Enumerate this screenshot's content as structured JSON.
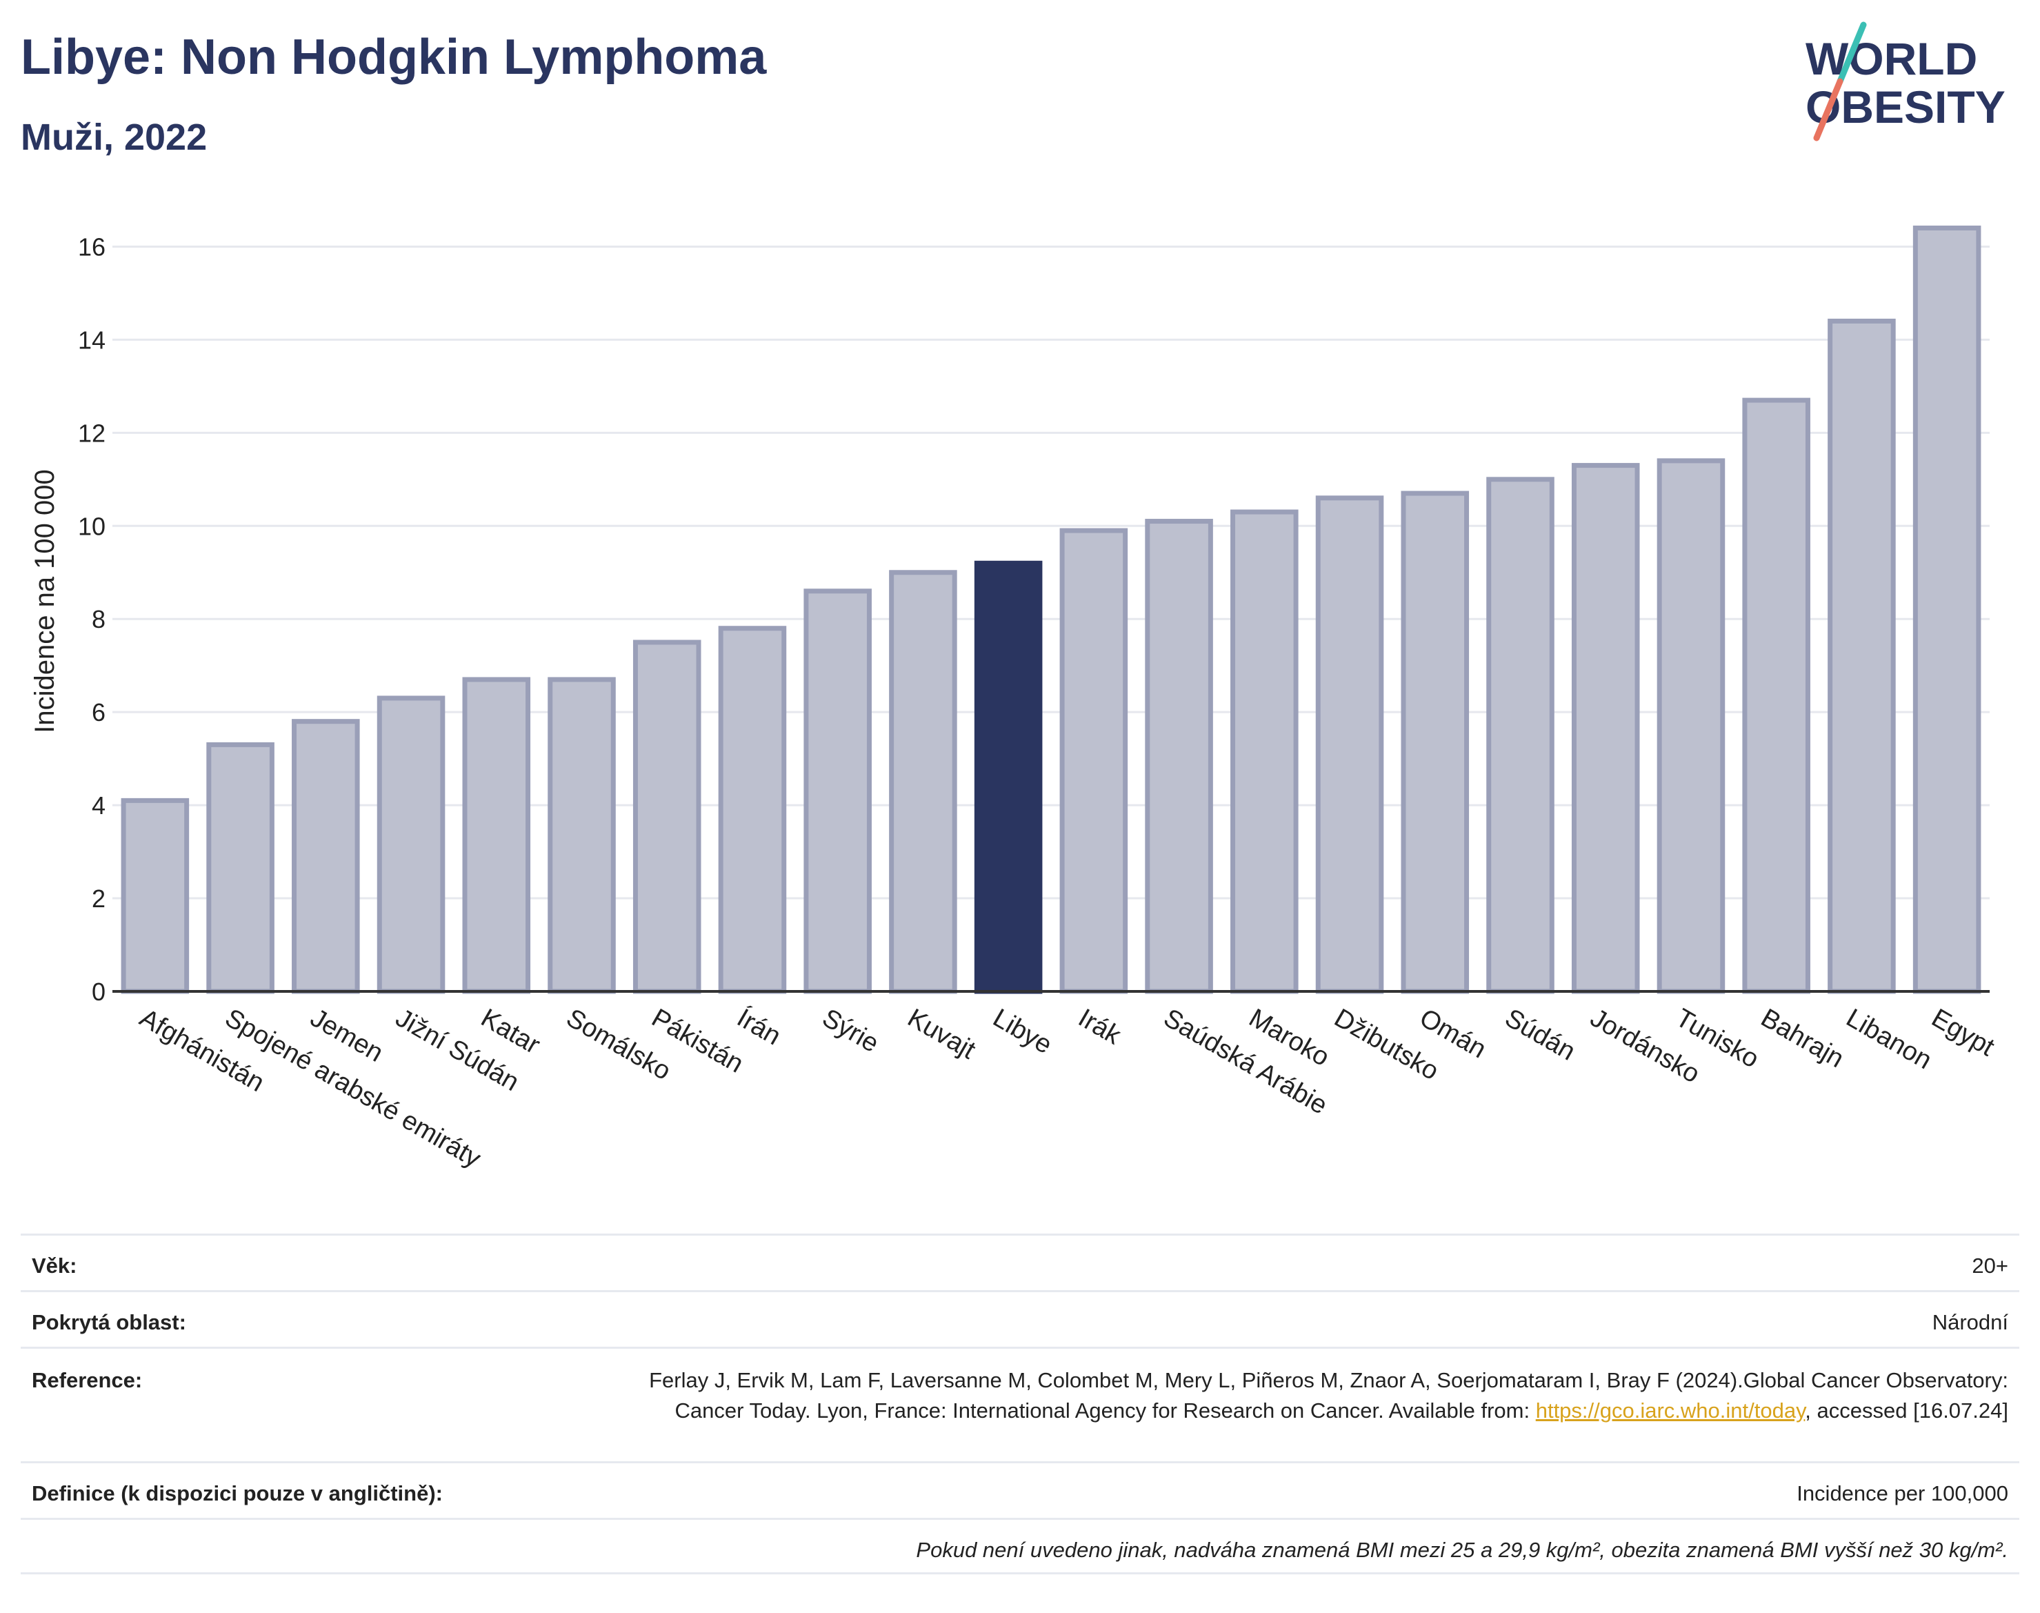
{
  "header": {
    "title": "Libye: Non Hodgkin Lymphoma",
    "subtitle": "Muži, 2022"
  },
  "logo": {
    "line1": "WORLD",
    "line2": "OBESITY"
  },
  "chart_data": {
    "type": "bar",
    "ylabel": "Incidence na 100 000",
    "ylim": [
      0,
      17
    ],
    "yticks": [
      0,
      2,
      4,
      6,
      8,
      10,
      12,
      14,
      16
    ],
    "grid": true,
    "highlight": "Libye",
    "categories": [
      "Afghánistán",
      "Spojené arabské emiráty",
      "Jemen",
      "Jižní Súdán",
      "Katar",
      "Somálsko",
      "Pákistán",
      "Írán",
      "Sýrie",
      "Kuvajt",
      "Libye",
      "Irák",
      "Saúdská Arábie",
      "Maroko",
      "Džibutsko",
      "Omán",
      "Súdán",
      "Jordánsko",
      "Tunisko",
      "Bahrajn",
      "Libanon",
      "Egypt"
    ],
    "values": [
      4.1,
      5.3,
      5.8,
      6.3,
      6.7,
      6.7,
      7.5,
      7.8,
      8.6,
      9.0,
      9.2,
      9.9,
      10.1,
      10.3,
      10.6,
      10.7,
      11.0,
      11.3,
      11.4,
      12.7,
      14.4,
      16.4
    ],
    "colors": {
      "bar": "#bdc0cf",
      "bar_border": "#9a9fb8",
      "highlight": "#2a3560",
      "grid": "#e6e8ee",
      "axis": "#333333"
    }
  },
  "info": {
    "age_label": "Věk:",
    "age_value": "20+",
    "area_label": "Pokrytá oblast:",
    "area_value": "Národní",
    "ref_label": "Reference:",
    "ref_text_1": "Ferlay J, Ervik M, Lam F, Laversanne M, Colombet M, Mery L, Piñeros M, Znaor A, Soerjomataram I, Bray F (2024).Global Cancer Observatory: Cancer Today. Lyon, France: International Agency for Research on Cancer. Available from: ",
    "ref_link": "https://gco.iarc.who.int/today",
    "ref_text_2": ", accessed [16.07.24]",
    "def_label": "Definice (k dispozici pouze v angličtině):",
    "def_value": "Incidence per 100,000",
    "note": "Pokud není uvedeno jinak, nadváha znamená BMI mezi 25 a 29,9 kg/m², obezita znamená BMI vyšší než 30 kg/m²."
  }
}
